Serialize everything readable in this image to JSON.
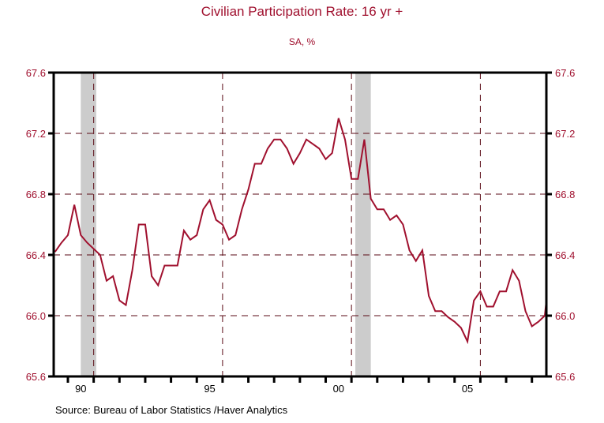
{
  "chart_data": {
    "type": "line",
    "title": "Civilian Participation Rate: 16 yr +",
    "subtitle": "SA, %",
    "xlabel": "",
    "ylabel": "",
    "ylim": [
      65.6,
      67.6
    ],
    "xlim": [
      1989.55,
      2008.15
    ],
    "yticks": [
      "67.6",
      "67.2",
      "66.8",
      "66.4",
      "66.0",
      "65.6"
    ],
    "ytick_values": [
      67.6,
      67.2,
      66.8,
      66.4,
      66.0,
      65.6
    ],
    "xtick_labels": [
      "90",
      "95",
      "00",
      "05"
    ],
    "xtick_label_years": [
      1990,
      1995,
      2000,
      2005
    ],
    "grid": true,
    "legend": "none",
    "line_color": "#a0102e",
    "recessions": [
      {
        "start": 1990.5,
        "end": 1991.1
      },
      {
        "start": 2001.15,
        "end": 2001.75
      }
    ],
    "series": [
      {
        "name": "Civilian Participation Rate: 16 yr +",
        "x_start": 1989.5,
        "step": 0.25,
        "values": [
          66.42,
          66.48,
          66.53,
          66.73,
          66.53,
          66.48,
          66.44,
          66.4,
          66.23,
          66.26,
          66.1,
          66.07,
          66.3,
          66.6,
          66.6,
          66.26,
          66.2,
          66.33,
          66.33,
          66.33,
          66.56,
          66.5,
          66.53,
          66.7,
          66.76,
          66.63,
          66.6,
          66.5,
          66.53,
          66.7,
          66.83,
          67.0,
          67.0,
          67.1,
          67.16,
          67.16,
          67.1,
          67.0,
          67.07,
          67.16,
          67.13,
          67.1,
          67.03,
          67.07,
          67.3,
          67.16,
          66.9,
          66.9,
          67.16,
          66.77,
          66.7,
          66.7,
          66.63,
          66.66,
          66.6,
          66.43,
          66.36,
          66.43,
          66.13,
          66.03,
          66.03,
          65.99,
          65.96,
          65.92,
          65.83,
          66.1,
          66.16,
          66.06,
          66.06,
          66.16,
          66.16,
          66.3,
          66.23,
          66.03,
          65.93,
          65.96,
          66.0,
          66.1
        ]
      }
    ],
    "source": "Source:  Bureau of Labor Statistics /Haver Analytics"
  }
}
